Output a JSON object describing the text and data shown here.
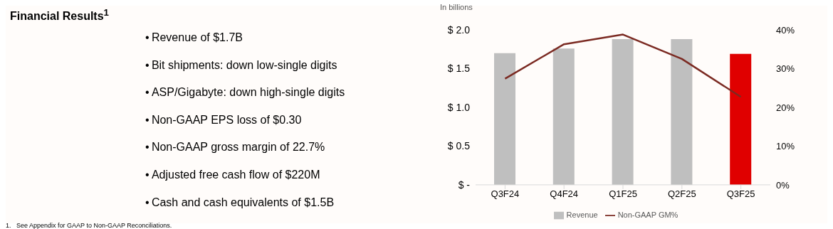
{
  "chart_data": [
    {
      "type": "other",
      "title": "Financial Results$^{1}$",
      "annotations": [
        "•\tRevenue of $1.7B",
        "•\tBit shipments: down low-single digits",
        "•\tASP/Gigabyte: down high-single digits",
        "•\tNon-GAAP EPS loss of $0.30",
        "•\tNon-GAAP gross margin of 22.7%",
        "•\tAdjusted free cash flow of $220M",
        "•\tCash and cash equivalents of $1.5B",
        "1.   See Appendix for GAAP to Non-GAAP Reconciliations."
      ]
    },
    {
      "type": "bar",
      "ylabel": "In billions",
      "categories": [
        "Q3F24",
        "Q4F24",
        "Q1F25",
        "Q2F25",
        "Q3F25"
      ],
      "series": [
        {
          "name": "Revenue",
          "type": "bar",
          "color": "#bfbfbf",
          "colors": [
            "#bfbfbf",
            "#bfbfbf",
            "#bfbfbf",
            "#bfbfbf",
            "#e00000"
          ],
          "values": [
            1.7,
            1.76,
            1.88,
            1.88,
            1.69
          ]
        },
        {
          "name": "Non-GAAP GM%",
          "type": "line",
          "axis": "y2",
          "color": "#7b2a22",
          "values": [
            27.4,
            36.3,
            38.8,
            32.5,
            22.7
          ]
        }
      ],
      "ylim": [
        0,
        2
      ],
      "yticks": [
        {
          "value": 0,
          "label": "$ -"
        },
        {
          "value": 0.5,
          "label": "$ 0.5"
        },
        {
          "value": 1,
          "label": "$ 1.0"
        },
        {
          "value": 1.5,
          "label": "$ 1.5"
        },
        {
          "value": 2,
          "label": "$ 2.0"
        }
      ],
      "y2lim": [
        0,
        40
      ],
      "y2ticks": [
        {
          "value": 0,
          "label": "0%"
        },
        {
          "value": 10,
          "label": "10%"
        },
        {
          "value": 20,
          "label": "20%"
        },
        {
          "value": 30,
          "label": "30%"
        },
        {
          "value": 40,
          "label": "40%"
        }
      ],
      "grid": false,
      "legend": "bottom"
    }
  ]
}
